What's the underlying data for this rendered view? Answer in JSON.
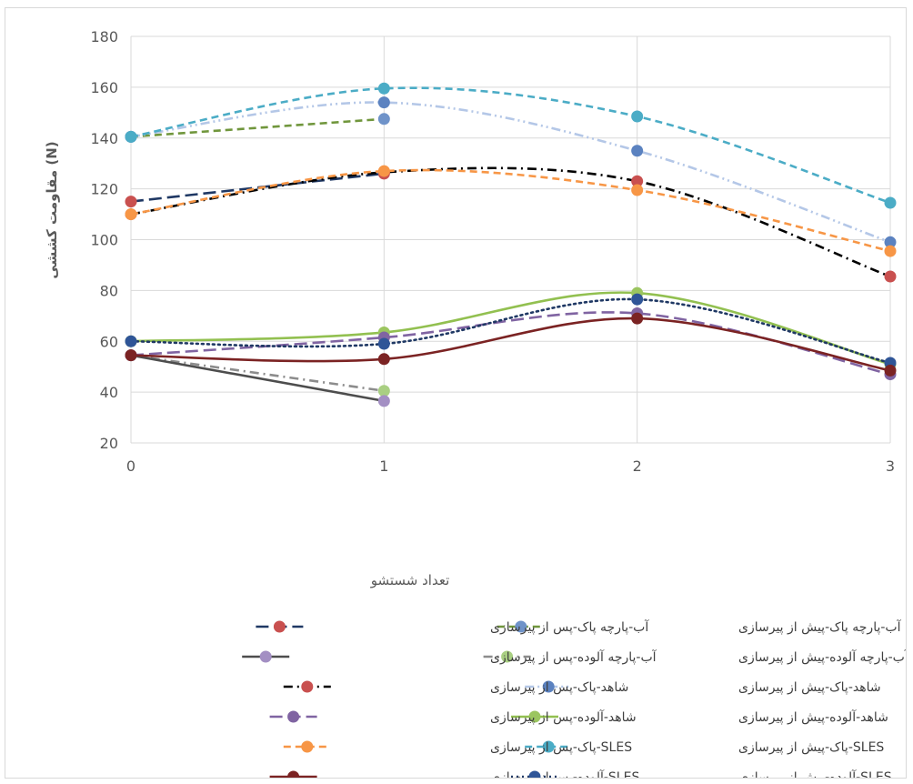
{
  "chart_data": {
    "type": "line",
    "title": "",
    "xlabel": "تعداد شستشو",
    "ylabel": "مقاومت کششی (N)",
    "x": [
      0,
      1,
      2,
      3
    ],
    "x_tick_labels": [
      "0",
      "1",
      "2",
      "3"
    ],
    "ylim": [
      20,
      180
    ],
    "y_ticks": [
      20,
      40,
      60,
      80,
      100,
      120,
      140,
      160,
      180
    ],
    "grid": true,
    "legend_position": "bottom",
    "series": [
      {
        "name": "آب-پارچه پاک-پیش از پیرسازی",
        "values": [
          140.5,
          147.5,
          null,
          null
        ],
        "line_color": "#70963c",
        "marker_color": "#6f93c9",
        "dash": "dash",
        "smooth": true
      },
      {
        "name": "آب-پارچه پاک-پس از پیرسازی",
        "values": [
          115,
          126,
          null,
          null
        ],
        "line_color": "#1f3864",
        "marker_color": "#c9504f",
        "dash": "longdash",
        "smooth": true
      },
      {
        "name": "آب-پارچه آلوده-پیش از پیرسازی",
        "values": [
          54.5,
          40.5,
          null,
          null
        ],
        "line_color": "#8c8c8c",
        "marker_color": "#a9cf82",
        "dash": "dashdot",
        "smooth": true
      },
      {
        "name": "آب-پارچه آلوده-پس از پیرسازی",
        "values": [
          54.5,
          36.5,
          null,
          null
        ],
        "line_color": "#4d4d4d",
        "marker_color": "#a38fc3",
        "dash": "solid",
        "smooth": false
      },
      {
        "name": "شاهد-پاک-پیش از پیرسازی",
        "values": [
          140.5,
          154,
          135,
          99
        ],
        "line_color": "#b4c7e7",
        "marker_color": "#5b82c0",
        "dash": "dashdotdot",
        "smooth": true
      },
      {
        "name": "شاهد-پاک-پس از پیرسازی",
        "values": [
          110,
          126.5,
          123,
          85.5
        ],
        "line_color": "#000000",
        "marker_color": "#c9504f",
        "dash": "dashdot",
        "smooth": true
      },
      {
        "name": "شاهد-آلوده-پیش از پیرسازی",
        "values": [
          60,
          63.5,
          79,
          51
        ],
        "line_color": "#92c050",
        "marker_color": "#9bc55f",
        "dash": "solid",
        "smooth": true
      },
      {
        "name": "شاهد-آلوده-پس از پیرسازی",
        "values": [
          54.5,
          61.5,
          71,
          47
        ],
        "line_color": "#8064a2",
        "marker_color": "#8064a2",
        "dash": "longdash",
        "smooth": true
      },
      {
        "name": "SLES-پاک-پیش از پیرسازی",
        "values": [
          140.5,
          159.5,
          148.5,
          114.5
        ],
        "line_color": "#4bacc6",
        "marker_color": "#4bacc6",
        "dash": "dash",
        "smooth": true
      },
      {
        "name": "SLES-پاک-پس از پیرسازی",
        "values": [
          110,
          127,
          119.5,
          95.5
        ],
        "line_color": "#f79646",
        "marker_color": "#f79646",
        "dash": "dash",
        "smooth": true
      },
      {
        "name": "SLES-آلوده-پیش از پیرسازی",
        "values": [
          60,
          59,
          76.5,
          51.5
        ],
        "line_color": "#1f3864",
        "marker_color": "#2f5597",
        "dash": "dot",
        "smooth": true
      },
      {
        "name": "SLES-آلوده-پس از پیرسازی",
        "values": [
          54.5,
          53,
          69,
          48.5
        ],
        "line_color": "#7b2323",
        "marker_color": "#7b2323",
        "dash": "solid",
        "smooth": true
      }
    ]
  }
}
